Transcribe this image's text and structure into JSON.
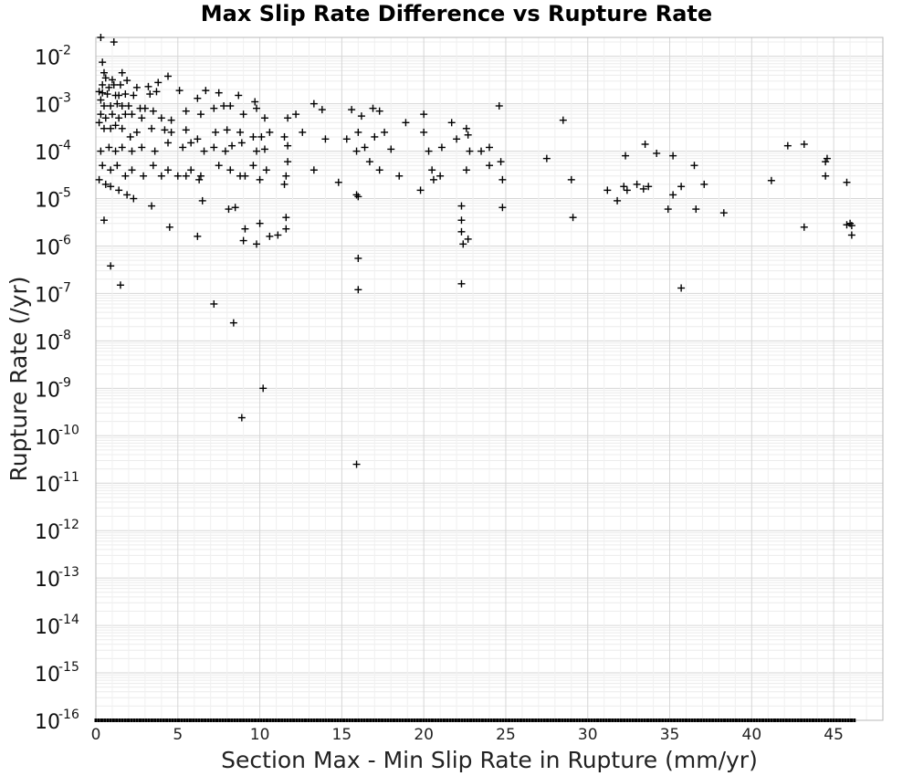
{
  "chart_data": {
    "type": "scatter",
    "title": "Max Slip Rate Difference vs Rupture Rate",
    "xlabel": "Section Max - Min Slip Rate in Rupture (mm/yr)",
    "ylabel": "Rupture Rate (/yr)",
    "xlim": [
      0,
      48
    ],
    "ylim": [
      1e-16,
      0.025
    ],
    "y_scale": "log",
    "x_ticks": [
      "0",
      "5",
      "10",
      "15",
      "20",
      "25",
      "30",
      "35",
      "40",
      "45"
    ],
    "y_tick_exponents": [
      "-16",
      "-15",
      "-14",
      "-13",
      "-12",
      "-11",
      "-10",
      "-9",
      "-8",
      "-7",
      "-6",
      "-5",
      "-4",
      "-3",
      "-2"
    ],
    "y_tick_base": "10",
    "grid": true,
    "marker": "plus",
    "marker_color": "#000000",
    "series": [
      {
        "points": [
          [
            0.3,
            0.025
          ],
          [
            1.1,
            0.02
          ],
          [
            0.4,
            0.0075
          ],
          [
            0.5,
            0.0045
          ],
          [
            1.6,
            0.0045
          ],
          [
            4.4,
            0.0038
          ],
          [
            0.6,
            0.0035
          ],
          [
            1.0,
            0.0032
          ],
          [
            1.9,
            0.0031
          ],
          [
            3.8,
            0.0028
          ],
          [
            0.4,
            0.0025
          ],
          [
            0.8,
            0.0022
          ],
          [
            1.1,
            0.0025
          ],
          [
            1.5,
            0.0025
          ],
          [
            2.5,
            0.0022
          ],
          [
            3.2,
            0.0023
          ],
          [
            0.2,
            0.0018
          ],
          [
            0.4,
            0.0017
          ],
          [
            0.7,
            0.0016
          ],
          [
            1.2,
            0.0015
          ],
          [
            1.4,
            0.0015
          ],
          [
            1.8,
            0.0016
          ],
          [
            2.3,
            0.0015
          ],
          [
            3.3,
            0.0016
          ],
          [
            3.7,
            0.0018
          ],
          [
            5.1,
            0.0019
          ],
          [
            6.2,
            0.0013
          ],
          [
            6.7,
            0.0019
          ],
          [
            7.5,
            0.0017
          ],
          [
            8.7,
            0.0015
          ],
          [
            9.7,
            0.0011
          ],
          [
            0.3,
            0.0012
          ],
          [
            0.5,
            0.0009
          ],
          [
            0.9,
            0.0009
          ],
          [
            1.3,
            0.001
          ],
          [
            1.6,
            0.0009
          ],
          [
            2.0,
            0.0009
          ],
          [
            2.7,
            0.0008
          ],
          [
            3.0,
            0.0008
          ],
          [
            0.3,
            0.0006
          ],
          [
            0.6,
            0.0005
          ],
          [
            1.0,
            0.0006
          ],
          [
            1.4,
            0.0005
          ],
          [
            1.8,
            0.0006
          ],
          [
            2.2,
            0.0006
          ],
          [
            2.8,
            0.0005
          ],
          [
            3.5,
            0.0007
          ],
          [
            4.0,
            0.0005
          ],
          [
            4.6,
            0.00045
          ],
          [
            5.5,
            0.0007
          ],
          [
            6.4,
            0.0006
          ],
          [
            7.2,
            0.0008
          ],
          [
            7.8,
            0.0009
          ],
          [
            8.2,
            0.0009
          ],
          [
            9.0,
            0.0006
          ],
          [
            9.8,
            0.0008
          ],
          [
            10.3,
            0.0005
          ],
          [
            11.7,
            0.0005
          ],
          [
            12.2,
            0.0006
          ],
          [
            13.3,
            0.001
          ],
          [
            13.8,
            0.00075
          ],
          [
            15.6,
            0.00075
          ],
          [
            16.2,
            0.00055
          ],
          [
            16.9,
            0.0008
          ],
          [
            17.3,
            0.0007
          ],
          [
            18.9,
            0.0004
          ],
          [
            20.0,
            0.0006
          ],
          [
            21.7,
            0.0004
          ],
          [
            22.6,
            0.0003
          ],
          [
            24.6,
            0.0009
          ],
          [
            28.5,
            0.00045
          ],
          [
            0.2,
            0.0004
          ],
          [
            0.5,
            0.0003
          ],
          [
            0.9,
            0.0003
          ],
          [
            1.2,
            0.00035
          ],
          [
            1.6,
            0.0003
          ],
          [
            2.1,
            0.0002
          ],
          [
            2.5,
            0.00025
          ],
          [
            3.4,
            0.0003
          ],
          [
            4.2,
            0.00028
          ],
          [
            4.6,
            0.00025
          ],
          [
            5.5,
            0.00028
          ],
          [
            6.2,
            0.00018
          ],
          [
            7.3,
            0.00025
          ],
          [
            8.0,
            0.00028
          ],
          [
            8.8,
            0.00025
          ],
          [
            9.6,
            0.0002
          ],
          [
            10.1,
            0.0002
          ],
          [
            10.6,
            0.00025
          ],
          [
            11.5,
            0.0002
          ],
          [
            12.6,
            0.00025
          ],
          [
            14.0,
            0.00018
          ],
          [
            15.3,
            0.00018
          ],
          [
            16.0,
            0.00025
          ],
          [
            17.0,
            0.0002
          ],
          [
            17.6,
            0.00025
          ],
          [
            20.0,
            0.00025
          ],
          [
            22.0,
            0.00018
          ],
          [
            22.7,
            0.00022
          ],
          [
            0.3,
            0.0001
          ],
          [
            0.8,
            0.00012
          ],
          [
            1.2,
            0.0001
          ],
          [
            1.6,
            0.00012
          ],
          [
            2.2,
            0.0001
          ],
          [
            2.8,
            0.00012
          ],
          [
            3.6,
            0.0001
          ],
          [
            4.4,
            0.00015
          ],
          [
            5.3,
            0.00012
          ],
          [
            5.8,
            0.00015
          ],
          [
            6.6,
            0.0001
          ],
          [
            7.2,
            0.00012
          ],
          [
            7.9,
            0.0001
          ],
          [
            8.3,
            0.00013
          ],
          [
            8.9,
            0.00015
          ],
          [
            9.8,
            0.0001
          ],
          [
            10.3,
            0.00011
          ],
          [
            11.7,
            0.00013
          ],
          [
            15.9,
            0.0001
          ],
          [
            16.4,
            0.00012
          ],
          [
            18.0,
            0.00011
          ],
          [
            20.3,
            0.0001
          ],
          [
            21.1,
            0.00012
          ],
          [
            22.8,
            0.0001
          ],
          [
            23.5,
            0.0001
          ],
          [
            24.0,
            0.00012
          ],
          [
            27.5,
            7e-05
          ],
          [
            32.3,
            8e-05
          ],
          [
            33.5,
            0.00014
          ],
          [
            34.2,
            9e-05
          ],
          [
            35.2,
            8e-05
          ],
          [
            42.2,
            0.00013
          ],
          [
            43.2,
            0.00014
          ],
          [
            44.6,
            7e-05
          ],
          [
            0.4,
            5e-05
          ],
          [
            0.9,
            4e-05
          ],
          [
            1.3,
            5e-05
          ],
          [
            1.8,
            3e-05
          ],
          [
            2.2,
            4e-05
          ],
          [
            2.9,
            3e-05
          ],
          [
            3.5,
            5e-05
          ],
          [
            4.4,
            4e-05
          ],
          [
            5.0,
            3e-05
          ],
          [
            5.8,
            4e-05
          ],
          [
            6.4,
            3e-05
          ],
          [
            7.5,
            5e-05
          ],
          [
            8.2,
            4e-05
          ],
          [
            8.8,
            3e-05
          ],
          [
            9.6,
            5e-05
          ],
          [
            10.4,
            4e-05
          ],
          [
            11.7,
            6e-05
          ],
          [
            11.6,
            3e-05
          ],
          [
            13.3,
            4e-05
          ],
          [
            16.7,
            6e-05
          ],
          [
            17.3,
            4e-05
          ],
          [
            18.5,
            3e-05
          ],
          [
            20.5,
            4e-05
          ],
          [
            21.0,
            3e-05
          ],
          [
            22.6,
            4e-05
          ],
          [
            24.0,
            5e-05
          ],
          [
            24.7,
            6e-05
          ],
          [
            36.5,
            5e-05
          ],
          [
            44.5,
            6e-05
          ],
          [
            0.2,
            2.5e-05
          ],
          [
            0.6,
            2e-05
          ],
          [
            0.9,
            1.8e-05
          ],
          [
            1.4,
            1.5e-05
          ],
          [
            1.9,
            1.2e-05
          ],
          [
            2.3,
            1e-05
          ],
          [
            3.4,
            7e-06
          ],
          [
            4.0,
            3e-05
          ],
          [
            5.5,
            3e-05
          ],
          [
            6.3,
            2.5e-05
          ],
          [
            6.5,
            9e-06
          ],
          [
            8.1,
            6e-06
          ],
          [
            8.5,
            6.5e-06
          ],
          [
            9.1,
            3e-05
          ],
          [
            10.0,
            2.5e-05
          ],
          [
            11.5,
            2e-05
          ],
          [
            14.8,
            2.2e-05
          ],
          [
            15.9,
            1.2e-05
          ],
          [
            16.0,
            1.1e-05
          ],
          [
            19.8,
            1.5e-05
          ],
          [
            20.6,
            2.5e-05
          ],
          [
            22.3,
            7e-06
          ],
          [
            24.8,
            2.5e-05
          ],
          [
            24.8,
            6.5e-06
          ],
          [
            29.0,
            2.5e-05
          ],
          [
            31.2,
            1.5e-05
          ],
          [
            31.8,
            9e-06
          ],
          [
            32.2,
            1.8e-05
          ],
          [
            32.4,
            1.5e-05
          ],
          [
            33.0,
            2e-05
          ],
          [
            33.4,
            1.6e-05
          ],
          [
            33.7,
            1.8e-05
          ],
          [
            34.9,
            6e-06
          ],
          [
            35.2,
            1.2e-05
          ],
          [
            35.7,
            1.8e-05
          ],
          [
            36.6,
            6e-06
          ],
          [
            37.1,
            2e-05
          ],
          [
            38.3,
            5e-06
          ],
          [
            41.2,
            2.4e-05
          ],
          [
            44.5,
            3e-05
          ],
          [
            45.8,
            2.2e-05
          ],
          [
            0.5,
            3.5e-06
          ],
          [
            4.5,
            2.5e-06
          ],
          [
            6.2,
            1.6e-06
          ],
          [
            9.1,
            2.3e-06
          ],
          [
            9.0,
            1.3e-06
          ],
          [
            10.0,
            3e-06
          ],
          [
            9.8,
            1.1e-06
          ],
          [
            10.6,
            1.6e-06
          ],
          [
            11.1,
            1.7e-06
          ],
          [
            11.6,
            2.3e-06
          ],
          [
            11.6,
            4e-06
          ],
          [
            22.3,
            3.5e-06
          ],
          [
            22.3,
            2e-06
          ],
          [
            22.4,
            1.1e-06
          ],
          [
            22.7,
            1.4e-06
          ],
          [
            29.1,
            4e-06
          ],
          [
            43.2,
            2.5e-06
          ],
          [
            45.8,
            2.8e-06
          ],
          [
            46.0,
            3e-06
          ],
          [
            46.1,
            2.7e-06
          ],
          [
            46.1,
            1.7e-06
          ],
          [
            0.9,
            3.8e-07
          ],
          [
            1.5,
            1.5e-07
          ],
          [
            16.0,
            5.5e-07
          ],
          [
            16.0,
            1.2e-07
          ],
          [
            22.3,
            1.6e-07
          ],
          [
            35.7,
            1.3e-07
          ],
          [
            7.2,
            6e-08
          ],
          [
            8.4,
            2.4e-08
          ],
          [
            10.2,
            1e-09
          ],
          [
            8.9,
            2.4e-10
          ],
          [
            15.9,
            2.5e-11
          ]
        ]
      }
    ],
    "floor_value": 1e-16,
    "floor_x_range": [
      0,
      46.3
    ]
  }
}
